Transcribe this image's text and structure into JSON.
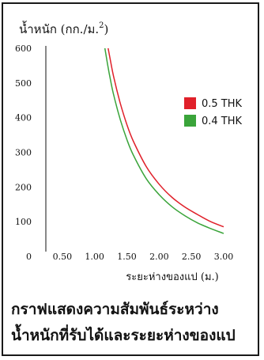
{
  "chart_data": {
    "type": "line",
    "ylabel": "น้ำหนัก (กก./ม.",
    "ylabel_sup": "2",
    "ylabel_close": ")",
    "xlabel": "ระยะห่างของแป (ม.)",
    "x_ticks": [
      "0.50",
      "1.00",
      "1.50",
      "2.00",
      "2.50",
      "3.00"
    ],
    "y_ticks": [
      "0",
      "100",
      "200",
      "300",
      "400",
      "500",
      "600"
    ],
    "xlim": [
      0,
      3.1
    ],
    "ylim": [
      0,
      600
    ],
    "legend_position": "right",
    "series": [
      {
        "name": "0.5 THK",
        "color": "#e0202a",
        "x": [
          1.21,
          1.25,
          1.3,
          1.4,
          1.5,
          1.6,
          1.8,
          2.0,
          2.2,
          2.4,
          2.6,
          2.8,
          3.0
        ],
        "y": [
          600,
          560,
          514,
          440,
          380,
          332,
          259,
          208,
          170,
          142,
          120,
          100,
          85
        ]
      },
      {
        "name": "0.4 THK",
        "color": "#3aa43a",
        "x": [
          1.16,
          1.2,
          1.25,
          1.3,
          1.4,
          1.5,
          1.6,
          1.8,
          2.0,
          2.2,
          2.4,
          2.6,
          2.8,
          3.0
        ],
        "y": [
          600,
          555,
          505,
          462,
          393,
          337,
          292,
          224,
          178,
          143,
          117,
          96,
          80,
          66
        ]
      }
    ]
  },
  "caption": {
    "line1": "กราฟแสดงความสัมพันธ์ระหว่าง",
    "line2": "น้ำหนักที่รับได้และระยะห่างของแป"
  }
}
